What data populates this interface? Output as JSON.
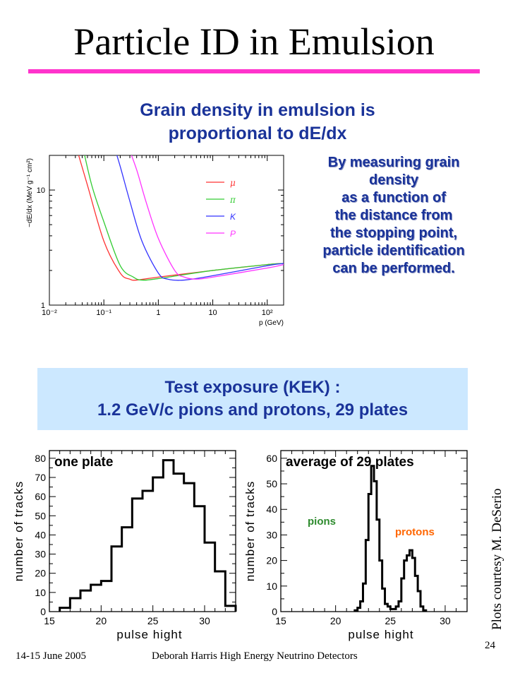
{
  "slide": {
    "title": "Particle ID in Emulsion",
    "headline": [
      "Grain density in emulsion is",
      "proportional to dE/dx"
    ],
    "side_text": [
      "By measuring grain",
      "density",
      "as a function of",
      "the distance from",
      "the stopping point,",
      "particle identification",
      "can be performed."
    ],
    "test_box": [
      "Test exposure (KEK) :",
      "1.2 GeV/c pions and protons, 29 plates"
    ],
    "credit": "Plots courtesy M. DeSerio",
    "footer_left": "14-15 June 2005",
    "footer_center": "Deborah Harris  High Energy Neutrino Detectors",
    "page_number": "24",
    "title_rule_color": "#ff33cc",
    "text_color": "#1a3399",
    "box_color": "#cce8ff"
  },
  "chart_data": [
    {
      "type": "line",
      "xlabel": "p (GeV)",
      "ylabel": "−dE/dx (MeV g⁻¹ cm²)",
      "x_scale": "log",
      "y_scale": "log",
      "xlim": [
        0.01,
        200
      ],
      "ylim": [
        1,
        20
      ],
      "x_ticks": [
        "10⁻²",
        "10⁻¹",
        "1",
        "10",
        "10²"
      ],
      "y_ticks": [
        "1",
        "10"
      ],
      "legend_position": "top-right",
      "series": [
        {
          "name": "μ",
          "color": "#ff3333",
          "x": [
            0.03,
            0.05,
            0.1,
            0.2,
            0.3,
            0.4,
            1,
            10,
            100,
            200
          ],
          "y": [
            25,
            11,
            3.6,
            1.9,
            1.68,
            1.65,
            1.75,
            2.0,
            2.25,
            2.3
          ]
        },
        {
          "name": "π",
          "color": "#33cc33",
          "x": [
            0.04,
            0.06,
            0.1,
            0.2,
            0.35,
            0.5,
            1,
            10,
            100,
            200
          ],
          "y": [
            25,
            11,
            5.3,
            2.2,
            1.75,
            1.65,
            1.7,
            2.0,
            2.25,
            2.3
          ]
        },
        {
          "name": "K",
          "color": "#3333ff",
          "x": [
            0.15,
            0.2,
            0.3,
            0.5,
            1,
            1.5,
            3,
            10,
            100,
            200
          ],
          "y": [
            25,
            16,
            8,
            3.6,
            1.9,
            1.68,
            1.65,
            1.8,
            2.2,
            2.3
          ]
        },
        {
          "name": "P",
          "color": "#ff33ff",
          "x": [
            0.27,
            0.4,
            0.6,
            1,
            2,
            3,
            5,
            10,
            100,
            200
          ],
          "y": [
            25,
            15,
            7.8,
            3.8,
            2.0,
            1.75,
            1.68,
            1.75,
            2.1,
            2.25
          ]
        }
      ]
    },
    {
      "type": "bar",
      "title": "one plate",
      "xlabel": "pulse hight",
      "ylabel": "number of tracks",
      "xlim": [
        15,
        33
      ],
      "ylim": [
        0,
        84
      ],
      "x_ticks": [
        15,
        20,
        25,
        30
      ],
      "y_ticks": [
        0,
        10,
        20,
        30,
        40,
        50,
        60,
        70,
        80
      ],
      "bin_width": 1,
      "bins": [
        16,
        17,
        18,
        19,
        20,
        21,
        22,
        23,
        24,
        25,
        26,
        27,
        28,
        29,
        30,
        31,
        32
      ],
      "values": [
        2,
        7,
        11,
        14,
        16,
        34,
        44,
        59,
        63,
        70,
        79,
        72,
        67,
        55,
        36,
        21,
        3
      ]
    },
    {
      "type": "bar",
      "title": "average of 29 plates",
      "xlabel": "pulse hight",
      "ylabel": "number of tracks",
      "xlim": [
        15,
        32
      ],
      "ylim": [
        0,
        63
      ],
      "x_ticks": [
        15,
        20,
        25,
        30
      ],
      "y_ticks": [
        0,
        10,
        20,
        30,
        40,
        50,
        60
      ],
      "bin_width": 0.25,
      "annotations": [
        {
          "text": "pions",
          "color": "#2e8b2e"
        },
        {
          "text": "protons",
          "color": "#ff6600"
        }
      ],
      "bins": [
        21.75,
        22.0,
        22.25,
        22.5,
        22.75,
        23.0,
        23.25,
        23.5,
        23.75,
        24.0,
        24.25,
        24.5,
        24.75,
        25.0,
        25.25,
        25.5,
        25.75,
        26.0,
        26.25,
        26.5,
        26.75,
        27.0,
        27.25,
        27.5,
        27.75,
        28.0
      ],
      "values": [
        0.5,
        1.5,
        4,
        11,
        28,
        46,
        57,
        51,
        36,
        20,
        9,
        3,
        2,
        1,
        1,
        2,
        4,
        13,
        20,
        22,
        24,
        21,
        14,
        8,
        2,
        0.5
      ]
    }
  ]
}
